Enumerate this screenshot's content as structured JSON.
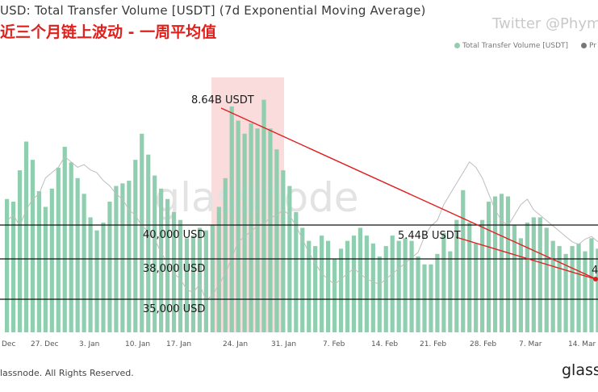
{
  "header": {
    "title": "USD: Total Transfer Volume [USDT] (7d Exponential Moving Average)",
    "subtitle": "近三个月链上波动 - 一周平均值",
    "watermark_twitter": "Twitter @Phym",
    "watermark_logo": "glassnode"
  },
  "legend": {
    "items": [
      {
        "label": "Total Transfer Volume [USDT]",
        "color": "#8fcfb0"
      },
      {
        "label": "Pr",
        "color": "#777777"
      }
    ]
  },
  "footer": {
    "copyright": "lassnode. All Rights Reserved.",
    "brand": "glass"
  },
  "chart_data": {
    "type": "bar",
    "title": "USD: Total Transfer Volume [USDT] (7d Exponential Moving Average)",
    "subtitle": "近三个月链上波动 - 一周平均值",
    "x_tick_labels": [
      "Dec",
      "27. Dec",
      "3. Jan",
      "10. Jan",
      "17. Jan",
      "24. Jan",
      "31. Jan",
      "7. Feb",
      "14. Feb",
      "21. Feb",
      "28. Feb",
      "7. Mar",
      "14. Mar"
    ],
    "series": [
      {
        "name": "Total Transfer Volume [USDT]",
        "unit": "billion USDT",
        "values": [
          5.1,
          5.0,
          6.2,
          7.3,
          6.6,
          5.4,
          4.8,
          5.5,
          6.3,
          7.1,
          6.5,
          5.9,
          5.3,
          4.4,
          3.9,
          4.2,
          5.0,
          5.6,
          5.7,
          5.8,
          6.6,
          7.6,
          6.8,
          6.0,
          5.5,
          5.1,
          4.6,
          4.3,
          3.6,
          3.7,
          4.0,
          3.9,
          4.1,
          4.8,
          5.9,
          8.64,
          8.1,
          7.6,
          8.0,
          7.8,
          8.9,
          7.8,
          7.0,
          6.2,
          5.6,
          4.6,
          4.0,
          3.5,
          3.3,
          3.7,
          3.5,
          2.8,
          3.2,
          3.5,
          3.7,
          4.0,
          3.7,
          3.4,
          2.9,
          3.3,
          3.7,
          3.5,
          3.6,
          3.5,
          2.9,
          2.6,
          2.6,
          3.0,
          3.8,
          3.1,
          4.3,
          5.44,
          4.2,
          3.4,
          4.3,
          5.0,
          5.2,
          5.3,
          5.2,
          4.1,
          3.6,
          4.2,
          4.4,
          4.4,
          4.0,
          3.5,
          3.3,
          3.0,
          3.3,
          3.4,
          3.1,
          3.6,
          3.2
        ]
      }
    ],
    "price_line": {
      "name": "Price",
      "color": "#999999"
    },
    "horizontal_lines": [
      {
        "label": "40,000 USD"
      },
      {
        "label": "38,000 USD"
      },
      {
        "label": "35,000 USD"
      }
    ],
    "annotations": [
      {
        "label": "8.64B USDT"
      },
      {
        "label": "5.44B USDT"
      },
      {
        "label": "4"
      }
    ],
    "highlight_region": {
      "from": "24. Jan",
      "to": "31. Jan",
      "color": "#fadcdc"
    },
    "grid": false,
    "legend_position": "top-right"
  }
}
